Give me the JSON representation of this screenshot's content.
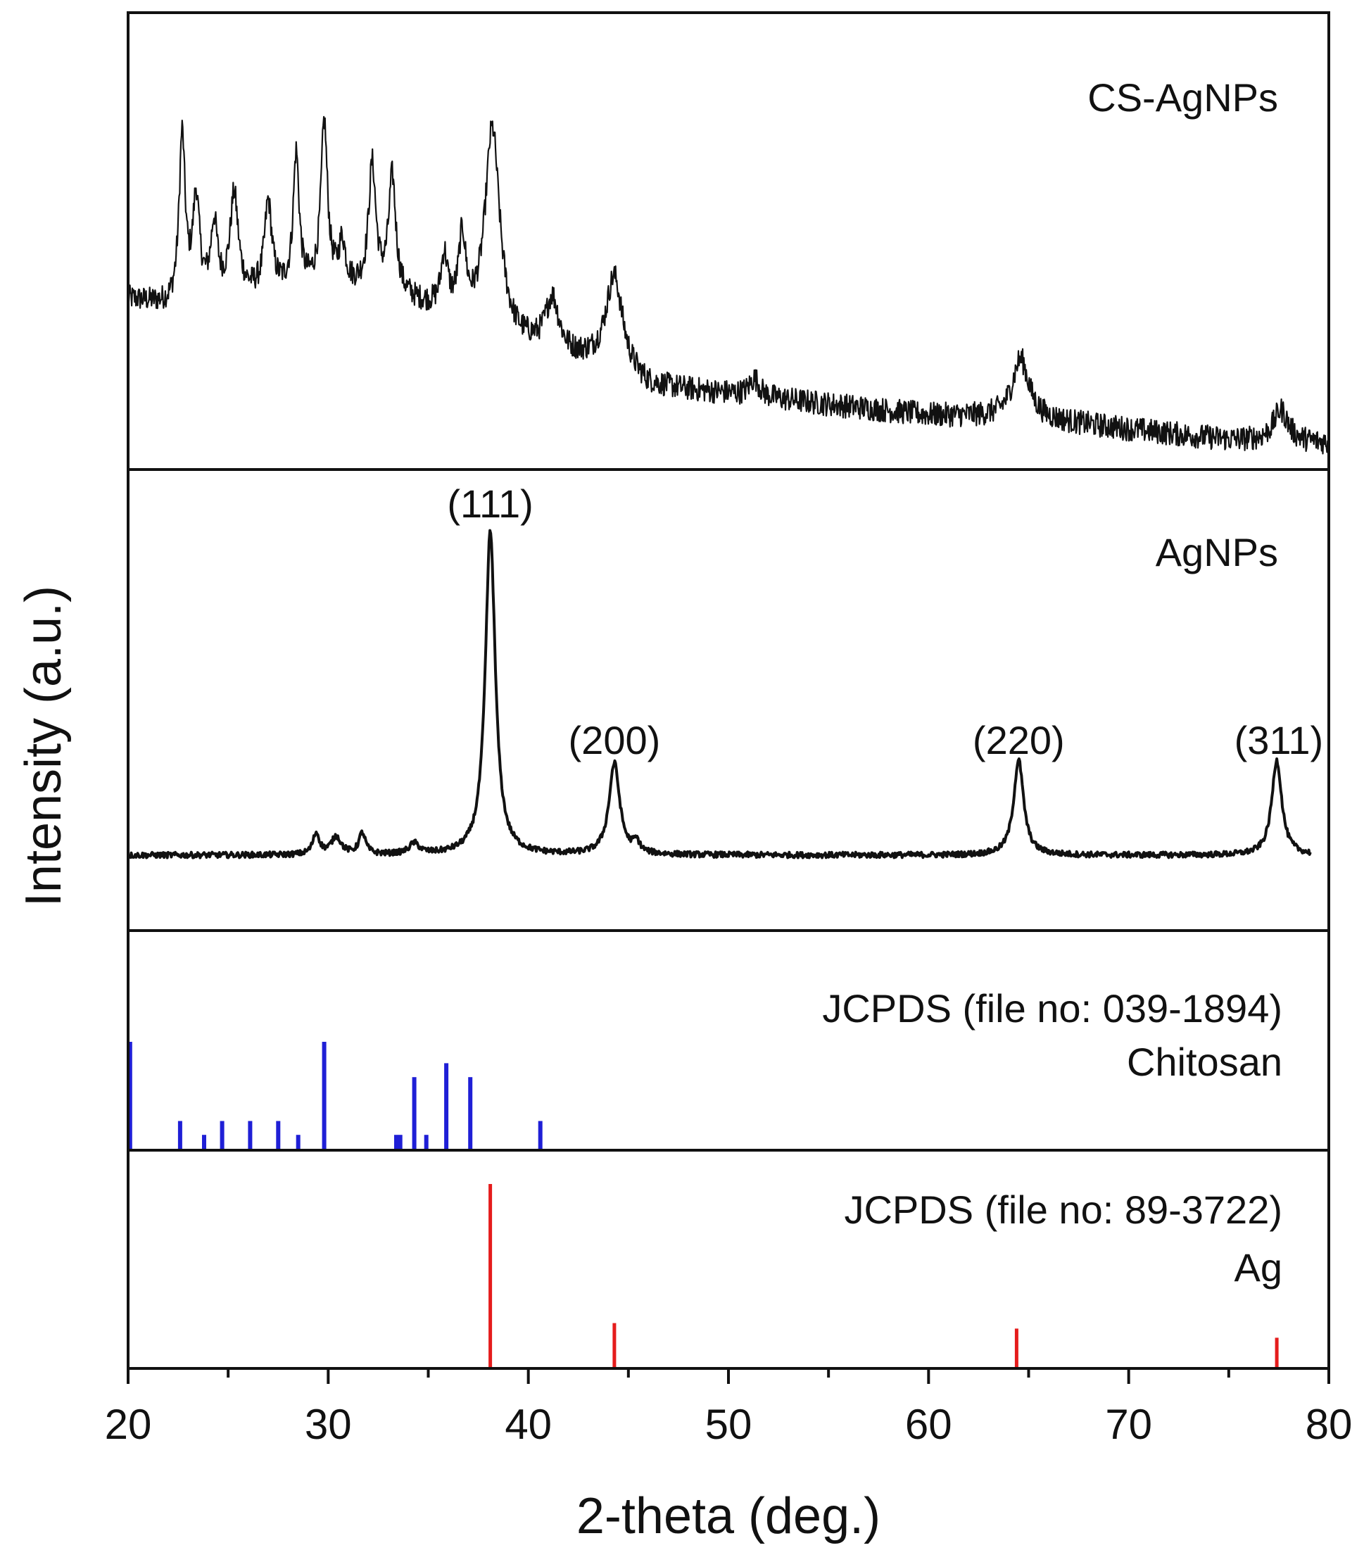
{
  "chart_data": {
    "type": "line",
    "title": "",
    "xlabel": "2-theta (deg.)",
    "ylabel": "Intensity (a.u.)",
    "xlim": [
      20,
      80
    ],
    "x_ticks": [
      20,
      30,
      40,
      50,
      60,
      70,
      80
    ],
    "x_tick_labels": [
      "20",
      "30",
      "40",
      "50",
      "60",
      "70",
      "80"
    ],
    "panels": [
      {
        "id": "cs-agnps",
        "label": "CS-AgNPs",
        "kind": "noisy-line",
        "baseline_points": [
          [
            20,
            0.45
          ],
          [
            22,
            0.43
          ],
          [
            24,
            0.45
          ],
          [
            26,
            0.46
          ],
          [
            28,
            0.47
          ],
          [
            30,
            0.48
          ],
          [
            32,
            0.47
          ],
          [
            34,
            0.44
          ],
          [
            36,
            0.4
          ],
          [
            38,
            0.33
          ],
          [
            40,
            0.31
          ],
          [
            42,
            0.28
          ],
          [
            44,
            0.26
          ],
          [
            46,
            0.2
          ],
          [
            50,
            0.18
          ],
          [
            55,
            0.15
          ],
          [
            60,
            0.12
          ],
          [
            65,
            0.11
          ],
          [
            70,
            0.08
          ],
          [
            75,
            0.05
          ],
          [
            80,
            0.04
          ]
        ],
        "peaks": [
          {
            "x": 22.7,
            "h": 0.47,
            "w": 0.18
          },
          {
            "x": 23.4,
            "h": 0.28,
            "w": 0.2
          },
          {
            "x": 24.3,
            "h": 0.2,
            "w": 0.2
          },
          {
            "x": 25.3,
            "h": 0.28,
            "w": 0.25
          },
          {
            "x": 27.0,
            "h": 0.25,
            "w": 0.22
          },
          {
            "x": 28.4,
            "h": 0.38,
            "w": 0.18
          },
          {
            "x": 29.8,
            "h": 0.46,
            "w": 0.2
          },
          {
            "x": 30.7,
            "h": 0.12,
            "w": 0.2
          },
          {
            "x": 32.2,
            "h": 0.35,
            "w": 0.22
          },
          {
            "x": 33.2,
            "h": 0.33,
            "w": 0.22
          },
          {
            "x": 35.8,
            "h": 0.15,
            "w": 0.2
          },
          {
            "x": 36.7,
            "h": 0.22,
            "w": 0.22
          },
          {
            "x": 38.2,
            "h": 0.6,
            "w": 0.45
          },
          {
            "x": 41.2,
            "h": 0.15,
            "w": 0.4
          },
          {
            "x": 44.3,
            "h": 0.26,
            "w": 0.5
          },
          {
            "x": 51.3,
            "h": 0.05,
            "w": 0.3
          },
          {
            "x": 64.6,
            "h": 0.17,
            "w": 0.5
          },
          {
            "x": 77.6,
            "h": 0.09,
            "w": 0.45
          }
        ],
        "noise": 0.035
      },
      {
        "id": "agnps",
        "label": "AgNPs",
        "kind": "line",
        "x_end": 79.1,
        "baseline": 0.08,
        "peaks": [
          {
            "x": 29.4,
            "h": 0.06,
            "w": 0.2
          },
          {
            "x": 30.4,
            "h": 0.05,
            "w": 0.3
          },
          {
            "x": 31.7,
            "h": 0.06,
            "w": 0.2
          },
          {
            "x": 34.3,
            "h": 0.03,
            "w": 0.3
          },
          {
            "x": 38.1,
            "h": 0.92,
            "w": 0.3
          },
          {
            "x": 44.3,
            "h": 0.26,
            "w": 0.32
          },
          {
            "x": 45.4,
            "h": 0.03,
            "w": 0.2
          },
          {
            "x": 64.5,
            "h": 0.27,
            "w": 0.3
          },
          {
            "x": 77.4,
            "h": 0.27,
            "w": 0.3
          }
        ],
        "noise": 0.008,
        "annotations": [
          {
            "text": "(111)",
            "x": 38.1
          },
          {
            "text": "(200)",
            "x": 44.3
          },
          {
            "text": "(220)",
            "x": 64.5
          },
          {
            "text": "(311)",
            "x": 77.5
          }
        ]
      },
      {
        "id": "chitosan-ref",
        "label": [
          "JCPDS (file no: 039-1894)",
          "Chitosan"
        ],
        "kind": "stick",
        "color": "#1f1fd6",
        "sticks": [
          {
            "x": 20.1,
            "y": 1.0
          },
          {
            "x": 22.6,
            "y": 0.26
          },
          {
            "x": 23.8,
            "y": 0.13
          },
          {
            "x": 24.7,
            "y": 0.26
          },
          {
            "x": 26.1,
            "y": 0.26
          },
          {
            "x": 27.5,
            "y": 0.26
          },
          {
            "x": 28.5,
            "y": 0.13
          },
          {
            "x": 29.8,
            "y": 1.0
          },
          {
            "x": 33.4,
            "y": 0.13
          },
          {
            "x": 33.6,
            "y": 0.13
          },
          {
            "x": 34.3,
            "y": 0.67
          },
          {
            "x": 34.9,
            "y": 0.13
          },
          {
            "x": 35.9,
            "y": 0.8
          },
          {
            "x": 37.1,
            "y": 0.67
          },
          {
            "x": 40.6,
            "y": 0.26
          }
        ]
      },
      {
        "id": "ag-ref",
        "label": [
          "JCPDS (file no: 89-3722)",
          "Ag"
        ],
        "kind": "stick",
        "color": "#e51c1c",
        "sticks": [
          {
            "x": 38.1,
            "y": 1.0
          },
          {
            "x": 44.3,
            "y": 0.24
          },
          {
            "x": 64.4,
            "y": 0.21
          },
          {
            "x": 77.4,
            "y": 0.16
          }
        ]
      }
    ]
  }
}
